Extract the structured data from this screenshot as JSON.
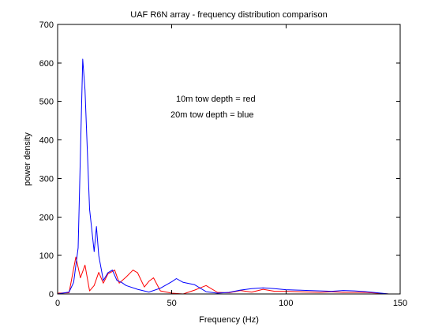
{
  "chart_data": {
    "type": "line",
    "title": "UAF R6N array - frequency distribution comparison",
    "xlabel": "Frequency (Hz)",
    "ylabel": "power density",
    "xlim": [
      0,
      150
    ],
    "ylim": [
      0,
      700
    ],
    "xticks": [
      0,
      50,
      100,
      150
    ],
    "yticks": [
      0,
      100,
      200,
      300,
      400,
      500,
      600,
      700
    ],
    "grid": false,
    "legend": "none",
    "annotations": [
      "10m tow depth = red",
      "20m tow depth = blue"
    ],
    "series": [
      {
        "color": "#ff0000",
        "x": [
          0,
          5,
          8,
          10,
          12,
          14,
          16,
          18,
          20,
          22,
          25,
          27,
          30,
          33,
          35,
          38,
          40,
          42,
          45,
          50,
          55,
          60,
          65,
          70,
          75,
          80,
          85,
          90,
          95,
          100,
          105,
          110,
          115,
          120,
          125,
          130,
          135,
          140,
          145
        ],
        "y": [
          2,
          3,
          96,
          42,
          75,
          8,
          22,
          56,
          28,
          52,
          62,
          28,
          44,
          62,
          55,
          18,
          33,
          42,
          8,
          2,
          0,
          10,
          22,
          4,
          3,
          9,
          5,
          12,
          7,
          7,
          6,
          5,
          4,
          6,
          4,
          4,
          4,
          2,
          0
        ]
      },
      {
        "color": "#0000ff",
        "x": [
          0,
          5,
          7,
          9,
          11,
          12,
          14,
          16,
          17,
          18,
          20,
          22,
          24,
          26,
          28,
          30,
          35,
          40,
          45,
          50,
          52,
          55,
          60,
          65,
          70,
          75,
          80,
          85,
          90,
          95,
          100,
          105,
          110,
          115,
          120,
          125,
          130,
          135,
          140,
          145
        ],
        "y": [
          0,
          5,
          30,
          120,
          610,
          530,
          220,
          110,
          175,
          100,
          35,
          55,
          62,
          35,
          30,
          22,
          12,
          5,
          15,
          32,
          40,
          30,
          24,
          6,
          2,
          4,
          10,
          14,
          16,
          14,
          11,
          10,
          9,
          8,
          7,
          9,
          8,
          6,
          3,
          0
        ]
      }
    ]
  }
}
